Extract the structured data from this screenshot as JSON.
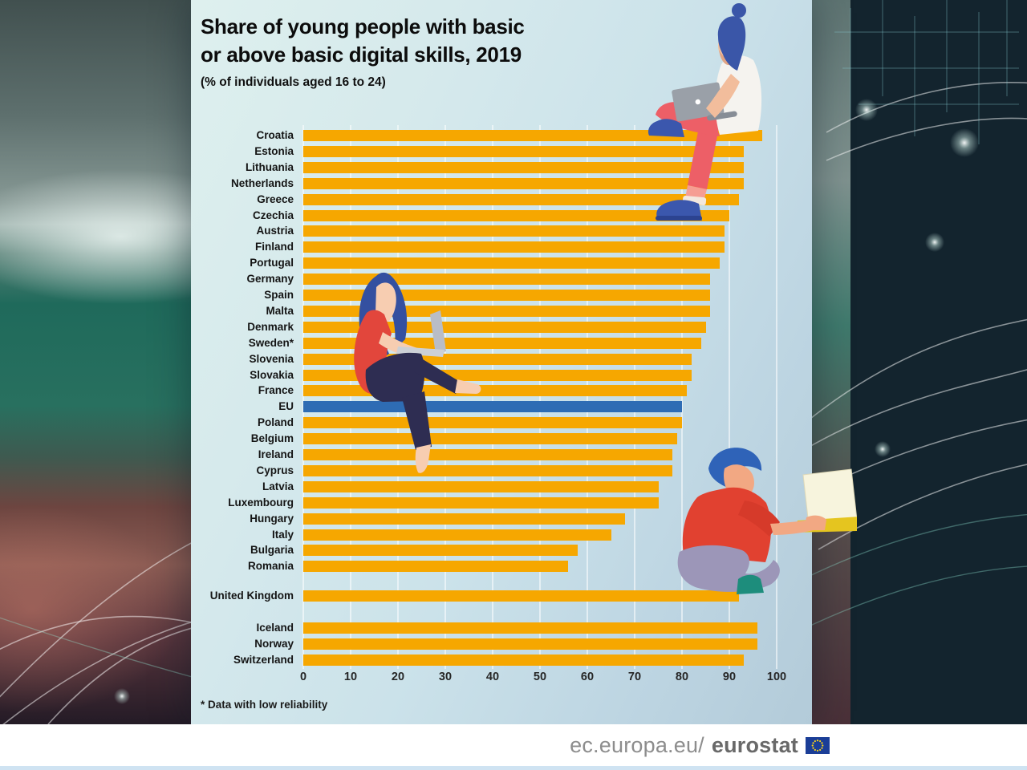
{
  "title": {
    "line1": "Share of young people with basic",
    "line2": "or above basic digital skills, 2019"
  },
  "subtitle": "(% of individuals aged 16 to 24)",
  "footnote": "* Data with low reliability",
  "footer": {
    "url_prefix": "ec.europa.eu/",
    "url_bold": "eurostat",
    "flag_icon": "eu-flag"
  },
  "colors": {
    "bar": "#f6a700",
    "eu_bar": "#2e6cb4",
    "panel": "#cfe3ea",
    "grid": "rgba(255,255,255,0.55)",
    "footer_text": "#8d8d8d",
    "flag_blue": "#1b3e97",
    "flag_stars": "#ffd617"
  },
  "chart_data": {
    "type": "bar",
    "orientation": "horizontal",
    "title": "Share of young people with basic or above basic digital skills, 2019",
    "subtitle": "(% of individuals aged 16 to 24)",
    "xlabel": "",
    "ylabel": "",
    "unit": "%",
    "xlim": [
      0,
      100
    ],
    "xticks": [
      0,
      10,
      20,
      30,
      40,
      50,
      60,
      70,
      80,
      90,
      100
    ],
    "grid": true,
    "legend": "none",
    "note": "* Data with low reliability (Sweden)",
    "rows": [
      {
        "label": "Croatia",
        "value": 97,
        "section": "eu"
      },
      {
        "label": "Estonia",
        "value": 93,
        "section": "eu"
      },
      {
        "label": "Lithuania",
        "value": 93,
        "section": "eu"
      },
      {
        "label": "Netherlands",
        "value": 93,
        "section": "eu"
      },
      {
        "label": "Greece",
        "value": 92,
        "section": "eu"
      },
      {
        "label": "Czechia",
        "value": 90,
        "section": "eu"
      },
      {
        "label": "Austria",
        "value": 89,
        "section": "eu"
      },
      {
        "label": "Finland",
        "value": 89,
        "section": "eu"
      },
      {
        "label": "Portugal",
        "value": 88,
        "section": "eu"
      },
      {
        "label": "Germany",
        "value": 86,
        "section": "eu"
      },
      {
        "label": "Spain",
        "value": 86,
        "section": "eu"
      },
      {
        "label": "Malta",
        "value": 86,
        "section": "eu"
      },
      {
        "label": "Denmark",
        "value": 85,
        "section": "eu"
      },
      {
        "label": "Sweden*",
        "value": 84,
        "section": "eu"
      },
      {
        "label": "Slovenia",
        "value": 82,
        "section": "eu"
      },
      {
        "label": "Slovakia",
        "value": 82,
        "section": "eu"
      },
      {
        "label": "France",
        "value": 81,
        "section": "eu"
      },
      {
        "label": "EU",
        "value": 80,
        "section": "eu",
        "highlight": true
      },
      {
        "label": "Poland",
        "value": 80,
        "section": "eu"
      },
      {
        "label": "Belgium",
        "value": 79,
        "section": "eu"
      },
      {
        "label": "Ireland",
        "value": 78,
        "section": "eu"
      },
      {
        "label": "Cyprus",
        "value": 78,
        "section": "eu"
      },
      {
        "label": "Latvia",
        "value": 75,
        "section": "eu"
      },
      {
        "label": "Luxembourg",
        "value": 75,
        "section": "eu"
      },
      {
        "label": "Hungary",
        "value": 68,
        "section": "eu"
      },
      {
        "label": "Italy",
        "value": 65,
        "section": "eu"
      },
      {
        "label": "Bulgaria",
        "value": 58,
        "section": "eu"
      },
      {
        "label": "Romania",
        "value": 56,
        "section": "eu"
      },
      {
        "label": "United Kingdom",
        "value": 92,
        "section": "uk"
      },
      {
        "label": "Iceland",
        "value": 96,
        "section": "efta"
      },
      {
        "label": "Norway",
        "value": 96,
        "section": "efta"
      },
      {
        "label": "Switzerland",
        "value": 93,
        "section": "efta"
      }
    ]
  }
}
